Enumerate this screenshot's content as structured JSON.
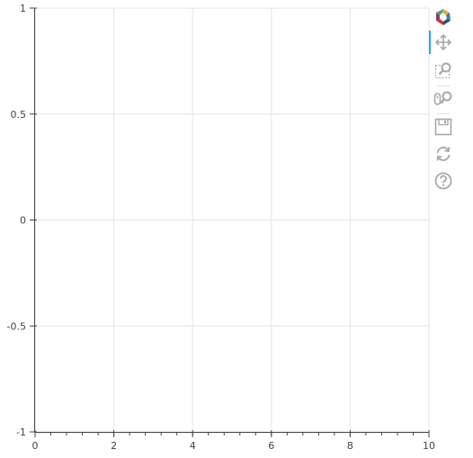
{
  "chart_data": {
    "type": "line",
    "title": "",
    "xlabel": "",
    "ylabel": "",
    "xlim": [
      0,
      10
    ],
    "ylim": [
      -1,
      1
    ],
    "x_ticks": [
      0,
      2,
      4,
      6,
      8,
      10
    ],
    "y_ticks": [
      1,
      0.5,
      0,
      -0.5,
      -1
    ],
    "x_tick_labels": [
      "0",
      "2",
      "4",
      "6",
      "8",
      "10"
    ],
    "y_tick_labels": [
      "1",
      "0.5",
      "0",
      "-0.5",
      "-1"
    ],
    "x_minor_step": 0.4,
    "grid": true,
    "series": []
  },
  "colors": {
    "grid": "#e5e5e5",
    "axis": "#444444",
    "tick_label": "#444444",
    "tool_icon": "#a8a8a8",
    "active_tool": "#26aae1"
  },
  "toolbar": {
    "tools": [
      {
        "name": "bokeh-logo-icon",
        "active": false
      },
      {
        "name": "pan-tool-icon",
        "active": true
      },
      {
        "name": "box-zoom-tool-icon",
        "active": false
      },
      {
        "name": "wheel-zoom-tool-icon",
        "active": false
      },
      {
        "name": "save-tool-icon",
        "active": false
      },
      {
        "name": "reset-tool-icon",
        "active": false
      },
      {
        "name": "help-tool-icon",
        "active": false
      }
    ]
  }
}
